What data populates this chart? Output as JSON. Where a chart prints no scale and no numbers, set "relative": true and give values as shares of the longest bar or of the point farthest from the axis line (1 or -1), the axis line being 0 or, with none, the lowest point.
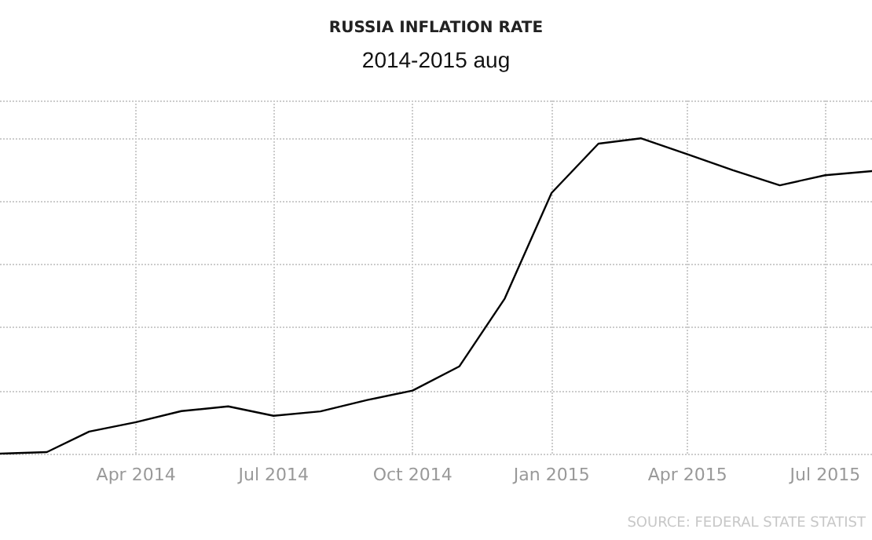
{
  "chart_data": {
    "type": "line",
    "title": "RUSSIA INFLATION RATE",
    "subtitle": "2014-2015 aug",
    "relative": true,
    "grid": true,
    "marker": "none",
    "line_style": "solid",
    "x": [
      "2014-01",
      "2014-02",
      "2014-03",
      "2014-04",
      "2014-05",
      "2014-06",
      "2014-07",
      "2014-08",
      "2014-09",
      "2014-10",
      "2014-11",
      "2014-12",
      "2015-01",
      "2015-02",
      "2015-03",
      "2015-04",
      "2015-05",
      "2015-06",
      "2015-07",
      "2015-08"
    ],
    "series": [
      {
        "color": "#000000",
        "values": [
          0,
          0.005,
          0.07,
          0.1,
          0.135,
          0.15,
          0.12,
          0.134,
          0.17,
          0.2,
          0.277,
          0.492,
          0.827,
          0.983,
          1,
          0.949,
          0.899,
          0.851,
          0.883,
          0.896
        ]
      }
    ],
    "xlim": [
      "2014-01",
      "2015-08"
    ],
    "xticks": [
      {
        "value": "2014-04",
        "label": "Apr 2014"
      },
      {
        "value": "2014-07",
        "label": "Jul 2014"
      },
      {
        "value": "2014-10",
        "label": "Oct 2014"
      },
      {
        "value": "2015-01",
        "label": "Jan 2015"
      },
      {
        "value": "2015-04",
        "label": "Apr 2015"
      },
      {
        "value": "2015-07",
        "label": "Jul 2015"
      }
    ],
    "annotations": [
      "SOURCE: FEDERAL STATE STATIST"
    ]
  }
}
